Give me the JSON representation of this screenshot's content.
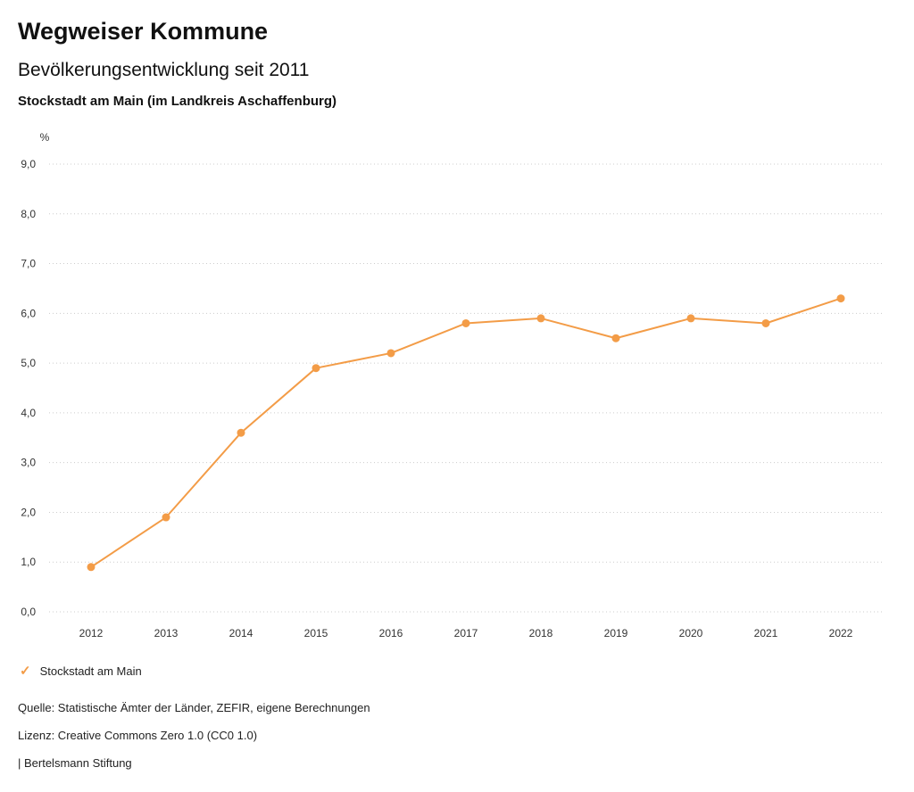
{
  "header": {
    "title": "Wegweiser Kommune",
    "subtitle": "Bevölkerungsentwicklung seit 2011",
    "region": "Stockstadt am Main (im Landkreis Aschaffenburg)"
  },
  "chart_data": {
    "type": "line",
    "title": "Bevölkerungsentwicklung seit 2011 — Stockstadt am Main",
    "unit_label": "%",
    "categories": [
      "2012",
      "2013",
      "2014",
      "2015",
      "2016",
      "2017",
      "2018",
      "2019",
      "2020",
      "2021",
      "2022"
    ],
    "series": [
      {
        "name": "Stockstadt am Main",
        "values": [
          0.9,
          1.9,
          3.6,
          4.9,
          5.2,
          5.8,
          5.9,
          5.5,
          5.9,
          5.8,
          6.3
        ]
      }
    ],
    "ylim": [
      0,
      9
    ],
    "yticks": [
      0,
      1,
      2,
      3,
      4,
      5,
      6,
      7,
      8,
      9
    ],
    "ytick_labels": [
      "0,0",
      "1,0",
      "2,0",
      "3,0",
      "4,0",
      "5,0",
      "6,0",
      "7,0",
      "8,0",
      "9,0"
    ],
    "grid": "dotted-horizontal",
    "legend_position": "bottom-left",
    "line_color": "#F39C47",
    "grid_color": "#cccccc"
  },
  "legend": {
    "items": [
      {
        "label": "Stockstadt am Main",
        "marker": "check",
        "color": "#F39C47"
      }
    ]
  },
  "footer": {
    "source": "Quelle: Statistische Ämter der Länder, ZEFIR, eigene Berechnungen",
    "license": "Lizenz: Creative Commons Zero 1.0 (CC0 1.0)",
    "attribution": "| Bertelsmann Stiftung"
  }
}
